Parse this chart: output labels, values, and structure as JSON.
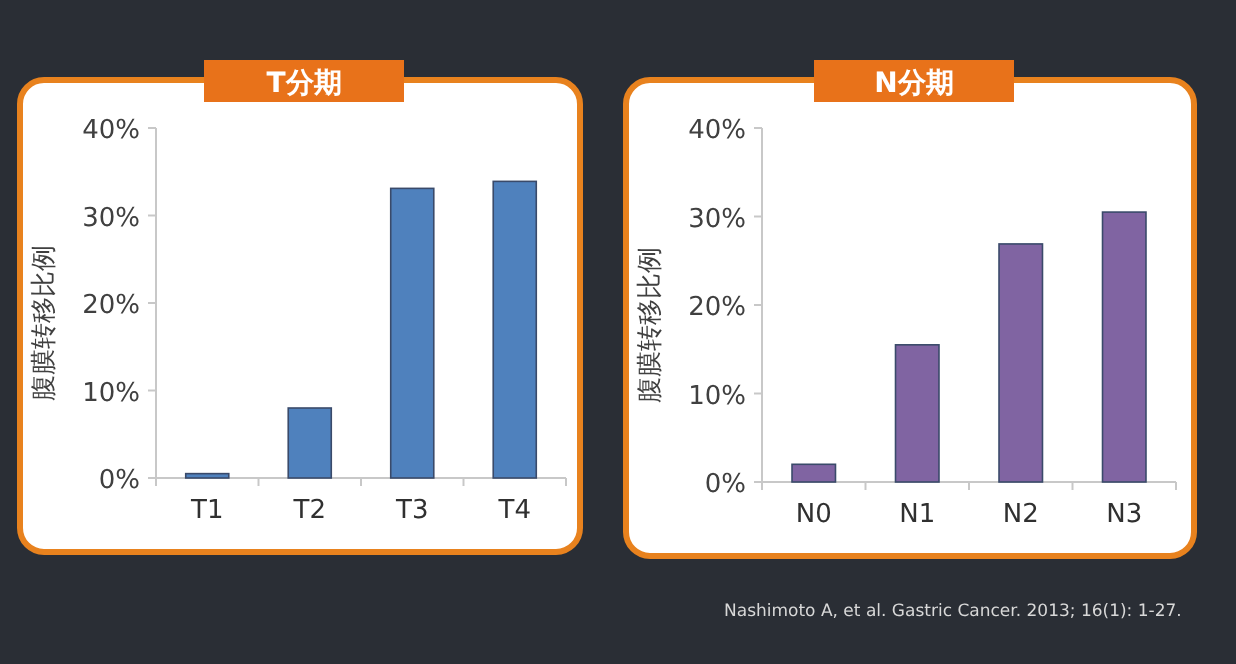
{
  "chart_data": [
    {
      "type": "bar",
      "title": "T分期",
      "ylabel": "腹膜转移比例",
      "categories": [
        "T1",
        "T2",
        "T3",
        "T4"
      ],
      "values": [
        0.5,
        8.0,
        33.1,
        33.9
      ],
      "color": "#4f81bd",
      "ylim": [
        0,
        40
      ],
      "yticks": [
        {
          "value": 0,
          "label": "0%"
        },
        {
          "value": 10,
          "label": "10%"
        },
        {
          "value": 20,
          "label": "20%"
        },
        {
          "value": 30,
          "label": "30%"
        },
        {
          "value": 40,
          "label": "40%"
        }
      ]
    },
    {
      "type": "bar",
      "title": "N分期",
      "ylabel": "腹膜转移比例",
      "categories": [
        "N0",
        "N1",
        "N2",
        "N3"
      ],
      "values": [
        2.0,
        15.5,
        26.9,
        30.5
      ],
      "color": "#8064a2",
      "ylim": [
        0,
        40
      ],
      "yticks": [
        {
          "value": 0,
          "label": "0%"
        },
        {
          "value": 10,
          "label": "10%"
        },
        {
          "value": 20,
          "label": "20%"
        },
        {
          "value": 30,
          "label": "30%"
        },
        {
          "value": 40,
          "label": "40%"
        }
      ],
      "annotations": [
        "Nashimoto A, et al. Gastric Cancer. 2013; 16(1): 1-27."
      ]
    }
  ]
}
